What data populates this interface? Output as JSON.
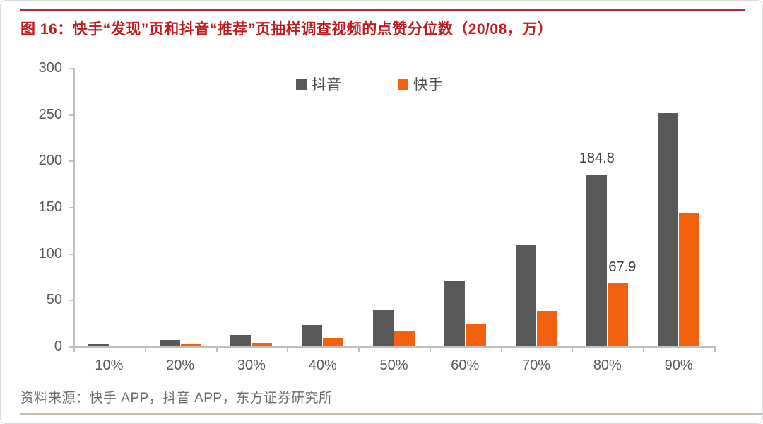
{
  "figure": {
    "title": "图 16：快手“发现”页和抖音“推荐”页抽样调查视频的点赞分位数（20/08，万）",
    "source": "资料来源：快手 APP，抖音 APP，东方证券研究所"
  },
  "colors": {
    "title_red": "#c01b1e",
    "top_rule": "#b02b38",
    "axis_line": "#bfbfbf",
    "axis_text": "#595959",
    "data_label": "#404040",
    "source_text": "#6b6b6b",
    "bottom_rule": "#c9bbad"
  },
  "chart_data": {
    "type": "bar",
    "title": "快手“发现”页和抖音“推荐”页抽样调查视频的点赞分位数（20/08，万）",
    "unit": "万",
    "categories": [
      "10%",
      "20%",
      "30%",
      "40%",
      "50%",
      "60%",
      "70%",
      "80%",
      "90%"
    ],
    "series": [
      {
        "key": "douyin",
        "name": "抖音",
        "color": "#595959",
        "values": [
          2.5,
          7,
          12.5,
          23,
          39,
          71,
          110,
          184.8,
          251
        ],
        "labels": [
          null,
          null,
          null,
          null,
          null,
          null,
          null,
          "184.8",
          null
        ]
      },
      {
        "key": "kuaishou",
        "name": "快手",
        "color": "#f2610d",
        "values": [
          0.8,
          2.3,
          4,
          9.5,
          17,
          24,
          38,
          67.9,
          143
        ],
        "labels": [
          null,
          null,
          null,
          null,
          null,
          null,
          null,
          "67.9",
          null
        ]
      }
    ],
    "xlabel": "",
    "ylabel": "",
    "ylim": [
      0,
      300
    ],
    "ytick_step": 50,
    "grid": false,
    "legend_position": "top-center"
  }
}
